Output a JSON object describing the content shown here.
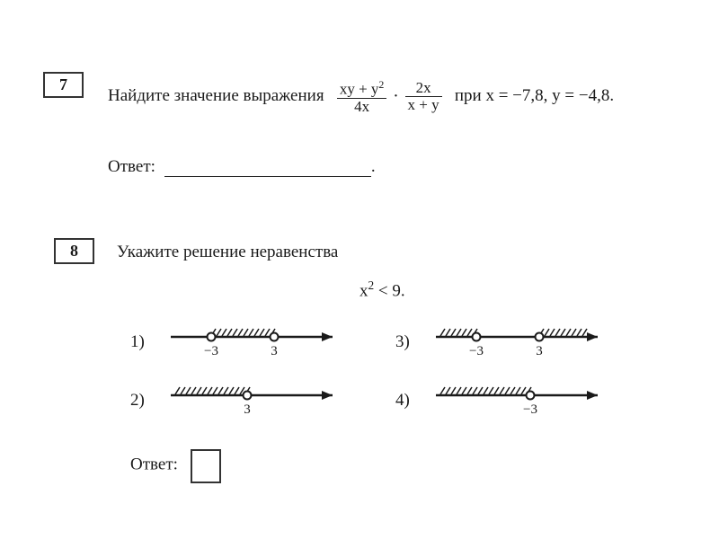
{
  "problem7": {
    "number": "7",
    "prompt_prefix": "Найдите значение выражения",
    "frac1_num": "xy + y",
    "frac1_num_sup": "2",
    "frac1_den": "4x",
    "dot": "·",
    "frac2_num": "2x",
    "frac2_den": "x + y",
    "prompt_suffix": "при  x = −7,8,  y = −4,8.",
    "answer_label": "Ответ:"
  },
  "problem8": {
    "number": "8",
    "prompt": "Укажите решение неравенства",
    "inequality_lhs": "x",
    "inequality_sup": "2",
    "inequality_rest": " < 9.",
    "answer_label": "Ответ:",
    "options": {
      "o1": {
        "label": "1)",
        "left_tick": "−3",
        "right_tick": "3"
      },
      "o2": {
        "label": "2)",
        "tick": "3"
      },
      "o3": {
        "label": "3)",
        "left_tick": "−3",
        "right_tick": "3"
      },
      "o4": {
        "label": "4)",
        "tick": "−3"
      }
    }
  },
  "style": {
    "line_color": "#1a1a1a",
    "line_width": 2.5,
    "hatch_color": "#1a1a1a",
    "hatch_width": 1.5,
    "circle_fill": "#ffffff",
    "circle_stroke": "#1a1a1a",
    "circle_r": 4.5,
    "tick_font_size": 15
  }
}
